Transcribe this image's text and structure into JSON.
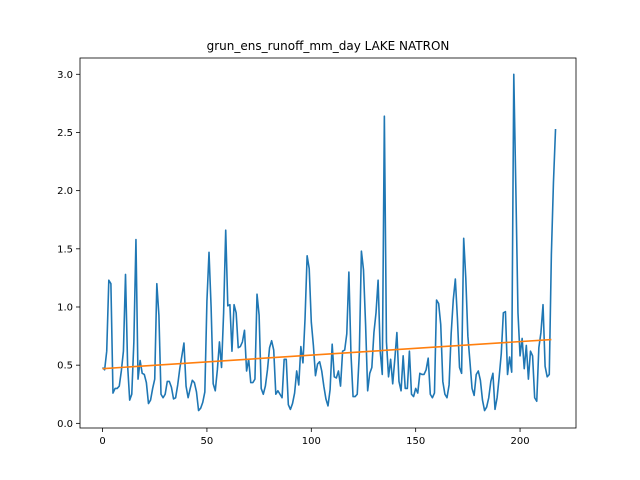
{
  "chart_data": {
    "type": "line",
    "title": "grun_ens_runoff_mm_day LAKE NATRON",
    "xlabel": "",
    "ylabel": "",
    "xlim": [
      -10.8,
      226.8
    ],
    "ylim": [
      -0.04,
      3.14
    ],
    "x_ticks": [
      0,
      50,
      100,
      150,
      200
    ],
    "x_tick_labels": [
      "0",
      "50",
      "100",
      "150",
      "200"
    ],
    "y_ticks": [
      0.0,
      0.5,
      1.0,
      1.5,
      2.0,
      2.5,
      3.0
    ],
    "y_tick_labels": [
      "0.0",
      "0.5",
      "1.0",
      "1.5",
      "2.0",
      "2.5",
      "3.0"
    ],
    "grid": false,
    "legend": "none",
    "series": [
      {
        "color": "#1f77b4",
        "x_start": 0,
        "values": [
          0.48,
          0.46,
          0.62,
          1.23,
          1.2,
          0.26,
          0.3,
          0.3,
          0.32,
          0.45,
          0.62,
          1.28,
          0.5,
          0.2,
          0.25,
          0.7,
          1.58,
          0.38,
          0.54,
          0.43,
          0.42,
          0.35,
          0.17,
          0.2,
          0.3,
          0.38,
          1.2,
          0.93,
          0.25,
          0.22,
          0.25,
          0.36,
          0.36,
          0.31,
          0.21,
          0.22,
          0.33,
          0.47,
          0.58,
          0.69,
          0.32,
          0.22,
          0.3,
          0.37,
          0.35,
          0.27,
          0.11,
          0.13,
          0.18,
          0.27,
          1.05,
          1.47,
          1.0,
          0.34,
          0.28,
          0.46,
          0.7,
          0.48,
          0.95,
          1.66,
          1.01,
          1.02,
          0.62,
          1.02,
          0.95,
          0.65,
          0.66,
          0.7,
          0.8,
          0.45,
          0.55,
          0.35,
          0.35,
          0.38,
          1.11,
          0.93,
          0.3,
          0.25,
          0.32,
          0.46,
          0.65,
          0.71,
          0.63,
          0.25,
          0.28,
          0.25,
          0.22,
          0.55,
          0.55,
          0.16,
          0.12,
          0.17,
          0.26,
          0.45,
          0.33,
          0.66,
          0.52,
          0.9,
          1.44,
          1.33,
          0.87,
          0.67,
          0.41,
          0.51,
          0.53,
          0.45,
          0.32,
          0.21,
          0.15,
          0.29,
          0.68,
          0.4,
          0.39,
          0.45,
          0.32,
          0.62,
          0.63,
          0.77,
          1.3,
          0.6,
          0.23,
          0.23,
          0.25,
          0.6,
          1.48,
          1.32,
          0.85,
          0.28,
          0.43,
          0.48,
          0.78,
          0.95,
          1.23,
          0.62,
          0.42,
          2.64,
          0.7,
          0.4,
          0.55,
          0.34,
          0.55,
          0.78,
          0.36,
          0.28,
          0.58,
          0.3,
          0.3,
          0.62,
          0.25,
          0.23,
          0.3,
          0.26,
          0.43,
          0.42,
          0.42,
          0.46,
          0.56,
          0.25,
          0.22,
          0.26,
          1.06,
          1.03,
          0.85,
          0.36,
          0.25,
          0.22,
          0.33,
          0.77,
          1.06,
          1.24,
          0.9,
          0.48,
          0.43,
          1.59,
          1.25,
          0.75,
          0.53,
          0.3,
          0.24,
          0.42,
          0.45,
          0.37,
          0.2,
          0.11,
          0.14,
          0.22,
          0.36,
          0.43,
          0.12,
          0.22,
          0.4,
          0.6,
          0.95,
          0.96,
          0.42,
          0.57,
          0.44,
          3.0,
          2.0,
          0.95,
          0.58,
          0.73,
          0.47,
          0.67,
          0.38,
          0.62,
          0.58,
          0.22,
          0.19,
          0.65,
          0.78,
          1.02,
          0.49,
          0.4,
          0.42,
          1.45,
          2.07,
          2.53
        ]
      },
      {
        "color": "#ff7f0e",
        "x": [
          0,
          215
        ],
        "values": [
          0.47,
          0.72
        ]
      }
    ]
  }
}
